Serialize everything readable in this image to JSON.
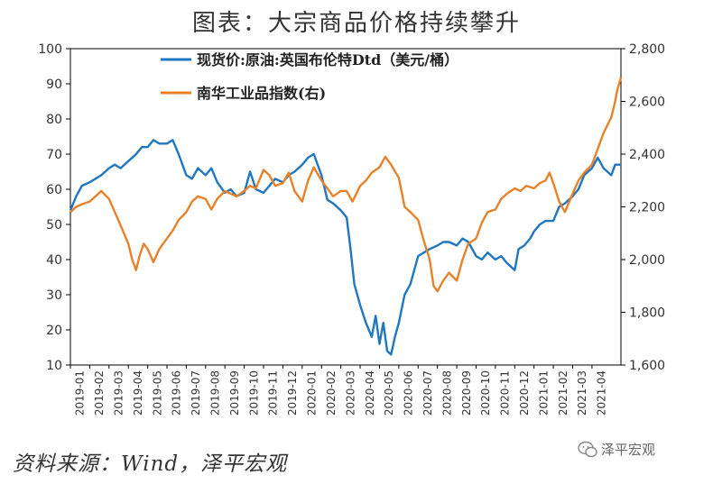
{
  "title": "图表：大宗商品价格持续攀升",
  "source": "资料来源：Wind，泽平宏观",
  "watermark": "泽平宏观",
  "watermark_icon": "wechat-icon",
  "colors": {
    "brent": "#1F77C0",
    "nanhua": "#E8822A",
    "axis": "#000000"
  },
  "chart_data": {
    "type": "line",
    "title": "",
    "legend_position": "top-center",
    "grid": false,
    "x_labels": [
      "2019-01",
      "2019-02",
      "2019-03",
      "2019-04",
      "2019-05",
      "2019-06",
      "2019-07",
      "2019-08",
      "2019-09",
      "2019-10",
      "2019-11",
      "2019-12",
      "2020-01",
      "2020-02",
      "2020-03",
      "2020-04",
      "2020-05",
      "2020-06",
      "2020-07",
      "2020-08",
      "2020-09",
      "2020-10",
      "2020-11",
      "2020-12",
      "2021-01",
      "2021-02",
      "2021-03",
      "2021-04"
    ],
    "x_range": [
      0,
      28.5
    ],
    "y_left": {
      "range": [
        10,
        100
      ],
      "ticks": [
        "10",
        "20",
        "30",
        "40",
        "50",
        "60",
        "70",
        "80",
        "90",
        "100"
      ]
    },
    "y_right": {
      "range": [
        1600,
        2800
      ],
      "ticks": [
        "1,600",
        "1,800",
        "2,000",
        "2,200",
        "2,400",
        "2,600",
        "2,800"
      ]
    },
    "series": [
      {
        "name": "现货价:原油:英国布伦特Dtd（美元/桶）",
        "axis": "left",
        "points": [
          [
            0,
            54
          ],
          [
            0.3,
            58
          ],
          [
            0.6,
            61
          ],
          [
            1,
            62
          ],
          [
            1.3,
            63
          ],
          [
            1.6,
            64
          ],
          [
            2,
            66
          ],
          [
            2.3,
            67
          ],
          [
            2.6,
            66
          ],
          [
            3,
            68
          ],
          [
            3.4,
            70
          ],
          [
            3.7,
            72
          ],
          [
            4,
            72
          ],
          [
            4.3,
            74
          ],
          [
            4.6,
            73
          ],
          [
            5,
            73
          ],
          [
            5.3,
            74
          ],
          [
            5.6,
            70
          ],
          [
            6,
            64
          ],
          [
            6.3,
            63
          ],
          [
            6.6,
            66
          ],
          [
            7,
            64
          ],
          [
            7.3,
            66
          ],
          [
            7.6,
            62
          ],
          [
            8,
            59
          ],
          [
            8.3,
            60
          ],
          [
            8.6,
            58
          ],
          [
            9,
            59
          ],
          [
            9.3,
            65
          ],
          [
            9.6,
            60
          ],
          [
            10,
            59
          ],
          [
            10.3,
            61
          ],
          [
            10.6,
            63
          ],
          [
            11,
            62
          ],
          [
            11.3,
            64
          ],
          [
            11.6,
            65
          ],
          [
            12,
            67
          ],
          [
            12.3,
            69
          ],
          [
            12.6,
            70
          ],
          [
            13,
            64
          ],
          [
            13.3,
            57
          ],
          [
            13.6,
            56
          ],
          [
            14,
            54
          ],
          [
            14.3,
            52
          ],
          [
            14.5,
            43
          ],
          [
            14.7,
            33
          ],
          [
            15,
            27
          ],
          [
            15.3,
            22
          ],
          [
            15.6,
            18
          ],
          [
            15.8,
            24
          ],
          [
            16,
            16
          ],
          [
            16.2,
            22
          ],
          [
            16.4,
            14
          ],
          [
            16.6,
            13
          ],
          [
            16.8,
            18
          ],
          [
            17,
            22
          ],
          [
            17.3,
            30
          ],
          [
            17.6,
            33
          ],
          [
            18,
            41
          ],
          [
            18.3,
            42
          ],
          [
            18.6,
            43
          ],
          [
            19,
            44
          ],
          [
            19.3,
            45
          ],
          [
            19.6,
            45
          ],
          [
            20,
            44
          ],
          [
            20.3,
            46
          ],
          [
            20.6,
            45
          ],
          [
            21,
            41
          ],
          [
            21.3,
            40
          ],
          [
            21.6,
            42
          ],
          [
            22,
            40
          ],
          [
            22.3,
            41
          ],
          [
            22.6,
            39
          ],
          [
            23,
            37
          ],
          [
            23.2,
            43
          ],
          [
            23.5,
            44
          ],
          [
            23.8,
            46
          ],
          [
            24,
            48
          ],
          [
            24.3,
            50
          ],
          [
            24.6,
            51
          ],
          [
            25,
            51
          ],
          [
            25.3,
            55
          ],
          [
            25.6,
            56
          ],
          [
            26,
            58
          ],
          [
            26.3,
            60
          ],
          [
            26.6,
            64
          ],
          [
            27,
            66
          ],
          [
            27.3,
            69
          ],
          [
            27.6,
            66
          ],
          [
            28,
            64
          ],
          [
            28.2,
            67
          ],
          [
            28.5,
            67
          ]
        ]
      },
      {
        "name": "南华工业品指数(右)",
        "axis": "right",
        "points": [
          [
            0,
            2180
          ],
          [
            0.3,
            2200
          ],
          [
            0.6,
            2210
          ],
          [
            1,
            2220
          ],
          [
            1.3,
            2240
          ],
          [
            1.6,
            2260
          ],
          [
            2,
            2230
          ],
          [
            2.3,
            2180
          ],
          [
            2.6,
            2130
          ],
          [
            3,
            2060
          ],
          [
            3.2,
            2000
          ],
          [
            3.4,
            1960
          ],
          [
            3.6,
            2020
          ],
          [
            3.8,
            2060
          ],
          [
            4,
            2040
          ],
          [
            4.3,
            1990
          ],
          [
            4.6,
            2040
          ],
          [
            5,
            2080
          ],
          [
            5.3,
            2110
          ],
          [
            5.6,
            2150
          ],
          [
            6,
            2180
          ],
          [
            6.3,
            2220
          ],
          [
            6.6,
            2240
          ],
          [
            7,
            2230
          ],
          [
            7.3,
            2190
          ],
          [
            7.6,
            2230
          ],
          [
            8,
            2260
          ],
          [
            8.3,
            2250
          ],
          [
            8.6,
            2240
          ],
          [
            9,
            2260
          ],
          [
            9.3,
            2280
          ],
          [
            9.6,
            2270
          ],
          [
            10,
            2340
          ],
          [
            10.3,
            2320
          ],
          [
            10.6,
            2280
          ],
          [
            11,
            2290
          ],
          [
            11.3,
            2330
          ],
          [
            11.6,
            2260
          ],
          [
            12,
            2220
          ],
          [
            12.3,
            2300
          ],
          [
            12.6,
            2350
          ],
          [
            13,
            2300
          ],
          [
            13.3,
            2270
          ],
          [
            13.6,
            2240
          ],
          [
            14,
            2260
          ],
          [
            14.3,
            2260
          ],
          [
            14.6,
            2220
          ],
          [
            15,
            2280
          ],
          [
            15.3,
            2300
          ],
          [
            15.6,
            2330
          ],
          [
            16,
            2350
          ],
          [
            16.3,
            2390
          ],
          [
            16.6,
            2360
          ],
          [
            17,
            2310
          ],
          [
            17.3,
            2200
          ],
          [
            17.6,
            2180
          ],
          [
            18,
            2150
          ],
          [
            18.3,
            2070
          ],
          [
            18.6,
            2000
          ],
          [
            18.8,
            1900
          ],
          [
            19,
            1880
          ],
          [
            19.3,
            1920
          ],
          [
            19.6,
            1950
          ],
          [
            20,
            1920
          ],
          [
            20.3,
            2000
          ],
          [
            20.6,
            2060
          ],
          [
            21,
            2080
          ],
          [
            21.3,
            2140
          ],
          [
            21.6,
            2180
          ],
          [
            22,
            2190
          ],
          [
            22.3,
            2230
          ],
          [
            22.6,
            2250
          ],
          [
            23,
            2270
          ],
          [
            23.3,
            2260
          ],
          [
            23.6,
            2280
          ],
          [
            24,
            2270
          ],
          [
            24.3,
            2290
          ],
          [
            24.6,
            2300
          ],
          [
            24.8,
            2330
          ],
          [
            25,
            2290
          ],
          [
            25.3,
            2220
          ],
          [
            25.6,
            2180
          ],
          [
            26,
            2250
          ],
          [
            26.3,
            2300
          ],
          [
            26.6,
            2330
          ],
          [
            27,
            2360
          ],
          [
            27.3,
            2420
          ],
          [
            27.6,
            2480
          ],
          [
            28,
            2540
          ],
          [
            28.2,
            2600
          ],
          [
            28.3,
            2640
          ],
          [
            28.5,
            2690
          ]
        ]
      }
    ]
  }
}
